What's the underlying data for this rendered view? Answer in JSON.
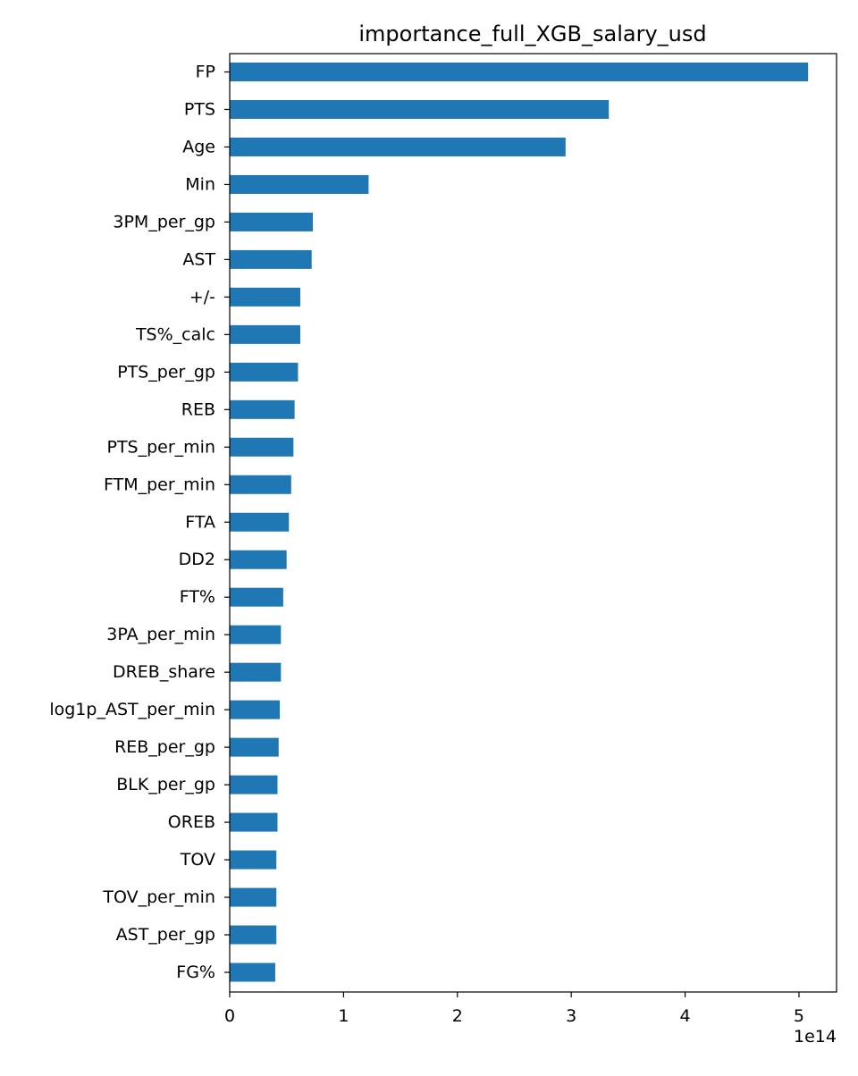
{
  "chart_data": {
    "type": "bar",
    "orientation": "horizontal",
    "title": "importance_full_XGB_salary_usd",
    "xlabel": "",
    "ylabel": "",
    "x_offset_label": "1e14",
    "x_scale_exponent": 14,
    "xlim": [
      0,
      5.33
    ],
    "x_ticks": [
      0,
      1,
      2,
      3,
      4,
      5
    ],
    "grid": false,
    "legend": "none",
    "bar_color": "#1f77b4",
    "categories": [
      "FP",
      "PTS",
      "Age",
      "Min",
      "3PM_per_gp",
      "AST",
      "+/-",
      "TS%_calc",
      "PTS_per_gp",
      "REB",
      "PTS_per_min",
      "FTM_per_min",
      "FTA",
      "DD2",
      "FT%",
      "3PA_per_min",
      "DREB_share",
      "log1p_AST_per_min",
      "REB_per_gp",
      "BLK_per_gp",
      "OREB",
      "TOV",
      "TOV_per_min",
      "AST_per_gp",
      "FG%"
    ],
    "values": [
      5.08,
      3.33,
      2.95,
      1.22,
      0.73,
      0.72,
      0.62,
      0.62,
      0.6,
      0.57,
      0.56,
      0.54,
      0.52,
      0.5,
      0.47,
      0.45,
      0.45,
      0.44,
      0.43,
      0.42,
      0.42,
      0.41,
      0.41,
      0.41,
      0.4
    ]
  }
}
